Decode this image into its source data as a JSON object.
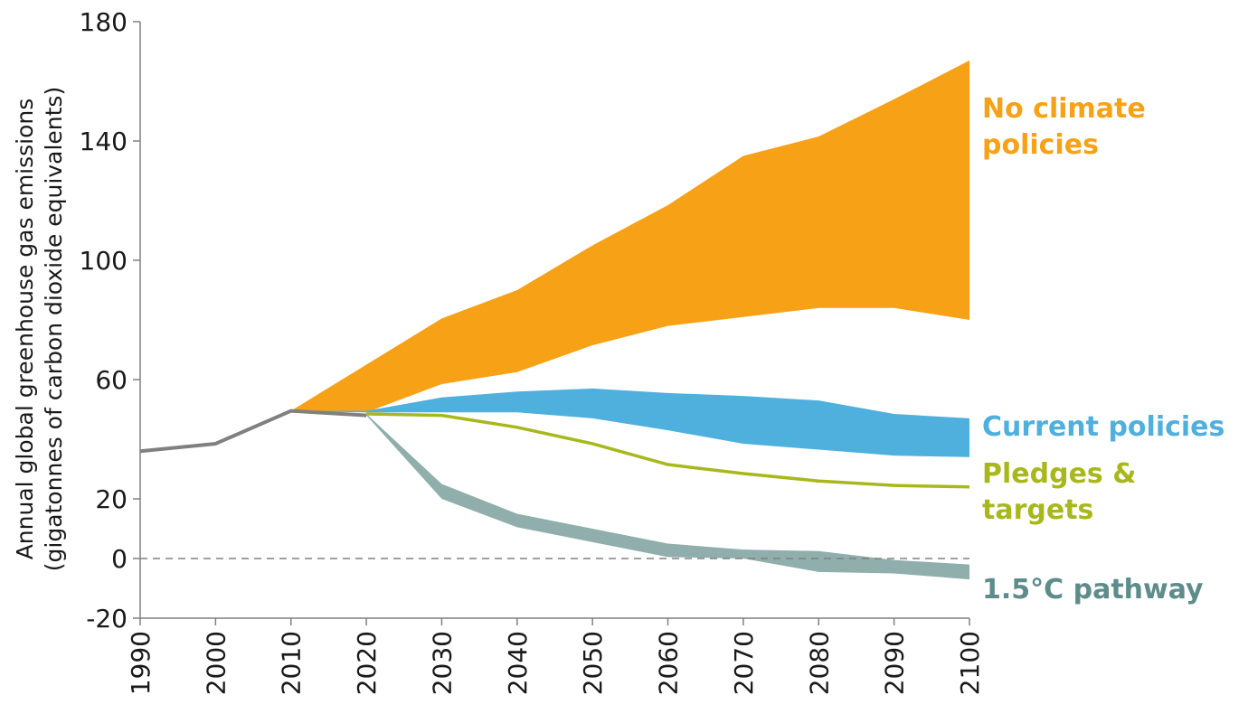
{
  "chart_data": {
    "type": "area",
    "title": "",
    "xlabel": "",
    "ylabel_lines": [
      "Annual global greenhouse gas emissions",
      "(gigatonnes of carbon dioxide equivalents)"
    ],
    "xlim": [
      1990,
      2100
    ],
    "ylim": [
      -20,
      180
    ],
    "x_ticks": [
      "1990",
      "2000",
      "2010",
      "2020",
      "2030",
      "2040",
      "2050",
      "2060",
      "2070",
      "2080",
      "2090",
      "2100"
    ],
    "y_ticks": [
      "180",
      "140",
      "100",
      "60",
      "20",
      "0",
      "-20"
    ],
    "grid": false,
    "zero_line": "dashed",
    "legend": "inline-right",
    "historical": {
      "color": "#808080",
      "points": [
        [
          1990,
          36
        ],
        [
          2000,
          38.5
        ],
        [
          2010,
          49.5
        ],
        [
          2020,
          48
        ]
      ]
    },
    "series": [
      {
        "name": "No climate policies",
        "label_lines": [
          "No climate",
          "policies"
        ],
        "kind": "band",
        "color": "#F7A116",
        "upper": [
          [
            2010,
            49.5
          ],
          [
            2020,
            65
          ],
          [
            2030,
            80.5
          ],
          [
            2040,
            90
          ],
          [
            2050,
            105
          ],
          [
            2060,
            118.5
          ],
          [
            2070,
            135
          ],
          [
            2080,
            141.5
          ],
          [
            2090,
            154
          ],
          [
            2100,
            167
          ]
        ],
        "lower": [
          [
            2010,
            49.5
          ],
          [
            2020,
            49
          ],
          [
            2030,
            58.5
          ],
          [
            2040,
            62.5
          ],
          [
            2050,
            71.5
          ],
          [
            2060,
            78
          ],
          [
            2070,
            81
          ],
          [
            2080,
            84
          ],
          [
            2090,
            84
          ],
          [
            2100,
            80
          ]
        ]
      },
      {
        "name": "Current policies",
        "label_lines": [
          "Current policies"
        ],
        "kind": "band",
        "color": "#4FB0DE",
        "upper": [
          [
            2010,
            49.5
          ],
          [
            2020,
            49.5
          ],
          [
            2030,
            54
          ],
          [
            2040,
            56
          ],
          [
            2050,
            57
          ],
          [
            2060,
            55.5
          ],
          [
            2070,
            54.5
          ],
          [
            2080,
            53
          ],
          [
            2090,
            48.5
          ],
          [
            2100,
            47
          ]
        ],
        "lower": [
          [
            2010,
            49.5
          ],
          [
            2020,
            49
          ],
          [
            2030,
            49
          ],
          [
            2040,
            49
          ],
          [
            2050,
            47
          ],
          [
            2060,
            43
          ],
          [
            2070,
            38.5
          ],
          [
            2080,
            36.5
          ],
          [
            2090,
            34.5
          ],
          [
            2100,
            34
          ]
        ]
      },
      {
        "name": "Pledges & targets",
        "label_lines": [
          "Pledges &",
          "targets"
        ],
        "kind": "line",
        "color": "#A8B81C",
        "points": [
          [
            2020,
            48.5
          ],
          [
            2030,
            48
          ],
          [
            2040,
            44
          ],
          [
            2050,
            38.5
          ],
          [
            2060,
            31.5
          ],
          [
            2070,
            28.5
          ],
          [
            2080,
            26
          ],
          [
            2090,
            24.5
          ],
          [
            2100,
            24
          ]
        ]
      },
      {
        "name": "1.5°C pathway",
        "label_lines": [
          "1.5°C pathway"
        ],
        "kind": "band",
        "color": "#8FAEAC",
        "label_color": "#5E8C8A",
        "upper": [
          [
            2020,
            48.5
          ],
          [
            2030,
            25
          ],
          [
            2040,
            15
          ],
          [
            2050,
            10
          ],
          [
            2060,
            5
          ],
          [
            2070,
            3
          ],
          [
            2080,
            2.5
          ],
          [
            2090,
            -0.5
          ],
          [
            2100,
            -2
          ]
        ],
        "lower": [
          [
            2020,
            48
          ],
          [
            2030,
            20
          ],
          [
            2040,
            10.5
          ],
          [
            2050,
            5.5
          ],
          [
            2060,
            0.5
          ],
          [
            2070,
            0
          ],
          [
            2080,
            -4.5
          ],
          [
            2090,
            -5
          ],
          [
            2100,
            -7
          ]
        ]
      }
    ]
  }
}
